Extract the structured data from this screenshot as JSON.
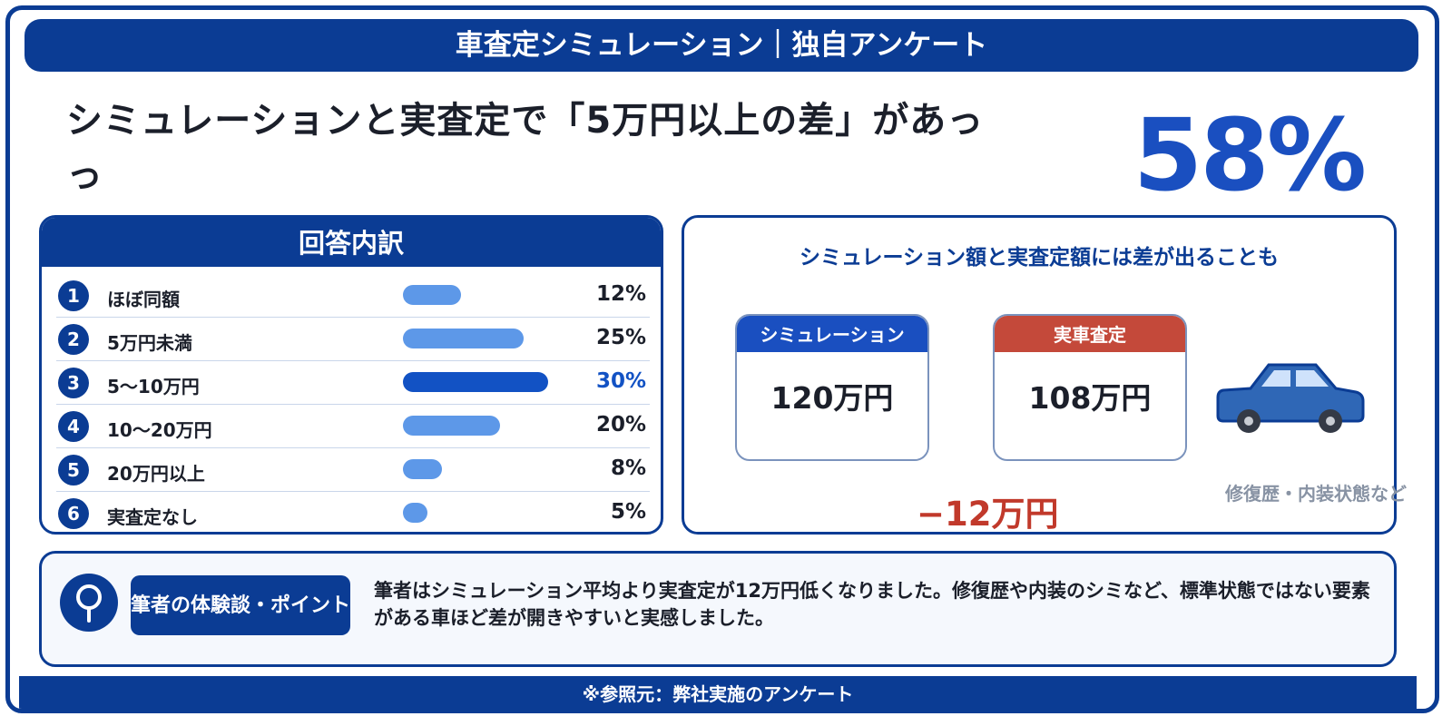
{
  "banner": "車査定シミュレーション｜独自アンケート",
  "headline": "シミュレーションと実査定で「5万円以上の差」があっ",
  "headline_tail": "っ",
  "big_percent": "58%",
  "breakdown": {
    "title": "回答内訳",
    "rows": [
      {
        "num": "1",
        "label": "ほぼ同額",
        "pct": "12%"
      },
      {
        "num": "2",
        "label": "5万円未満",
        "pct": "25%"
      },
      {
        "num": "3",
        "label": "5〜10万円",
        "pct": "30%"
      },
      {
        "num": "4",
        "label": "10〜20万円",
        "pct": "20%"
      },
      {
        "num": "5",
        "label": "20万円以上",
        "pct": "8%"
      },
      {
        "num": "6",
        "label": "実査定なし",
        "pct": "5%"
      }
    ]
  },
  "chart_data": {
    "type": "bar",
    "title": "回答内訳",
    "categories": [
      "ほぼ同額",
      "5万円未満",
      "5〜10万円",
      "10〜20万円",
      "20万円以上",
      "実査定なし"
    ],
    "values": [
      12,
      25,
      30,
      20,
      8,
      5
    ],
    "unit": "%",
    "highlight_index": 2,
    "colors": {
      "bar": "#5d98e8",
      "highlight": "#1252c4"
    }
  },
  "compare": {
    "title": "シミュレーション額と実査定額には差が出ることも",
    "sim_label": "シミュレーション",
    "sim_value": "120万円",
    "real_label": "実車査定",
    "real_value": "108万円",
    "diff": "−12万円",
    "note": "修復歴・内装状態など",
    "colors": {
      "sim": "#1a4fc0",
      "real": "#c4493a",
      "car": "#2f67b6"
    }
  },
  "experience": {
    "tag": "筆者の体験談・ポイント",
    "text": "筆者はシミュレーション平均より実査定が12万円低くなりました。修復歴や内装のシミなど、標準状態ではない要素がある車ほど差が開きやすいと実感しました。"
  },
  "footer": "※参照元：弊社実施のアンケート"
}
